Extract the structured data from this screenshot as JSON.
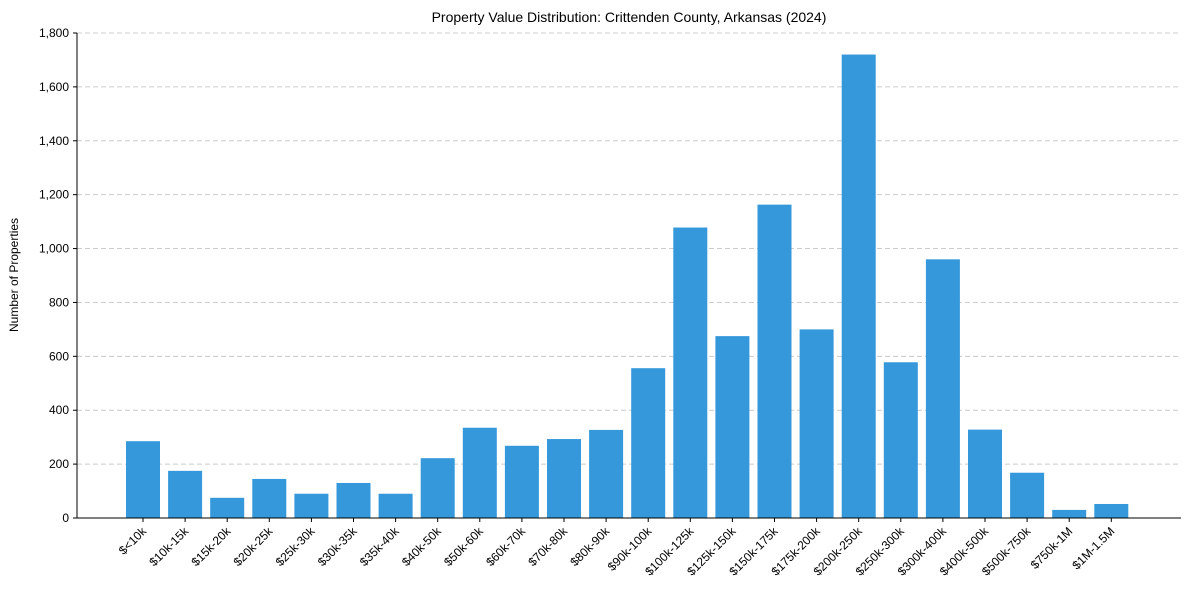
{
  "chart_data": {
    "type": "bar",
    "title": "Property Value Distribution: Crittenden County, Arkansas (2024)",
    "xlabel": "",
    "ylabel": "Number of Properties",
    "categories": [
      "$<10k",
      "$10k-15k",
      "$15k-20k",
      "$20k-25k",
      "$25k-30k",
      "$30k-35k",
      "$35k-40k",
      "$40k-50k",
      "$50k-60k",
      "$60k-70k",
      "$70k-80k",
      "$80k-90k",
      "$90k-100k",
      "$100k-125k",
      "$125k-150k",
      "$150k-175k",
      "$175k-200k",
      "$200k-250k",
      "$250k-300k",
      "$300k-400k",
      "$400k-500k",
      "$500k-750k",
      "$750k-1M",
      "$1M-1.5M"
    ],
    "values": [
      285,
      175,
      75,
      145,
      90,
      130,
      90,
      222,
      335,
      268,
      293,
      327,
      556,
      1078,
      675,
      1163,
      700,
      1720,
      578,
      960,
      328,
      168,
      30,
      52
    ],
    "ylim": [
      0,
      1800
    ],
    "yticks": [
      0,
      200,
      400,
      600,
      800,
      1000,
      1200,
      1400,
      1600,
      1800
    ],
    "ytick_labels": [
      "0",
      "200",
      "400",
      "600",
      "800",
      "1,000",
      "1,200",
      "1,400",
      "1,600",
      "1,800"
    ],
    "grid": "y-dashed",
    "bar_color": "#3498db",
    "grid_color": "#cccccc"
  }
}
